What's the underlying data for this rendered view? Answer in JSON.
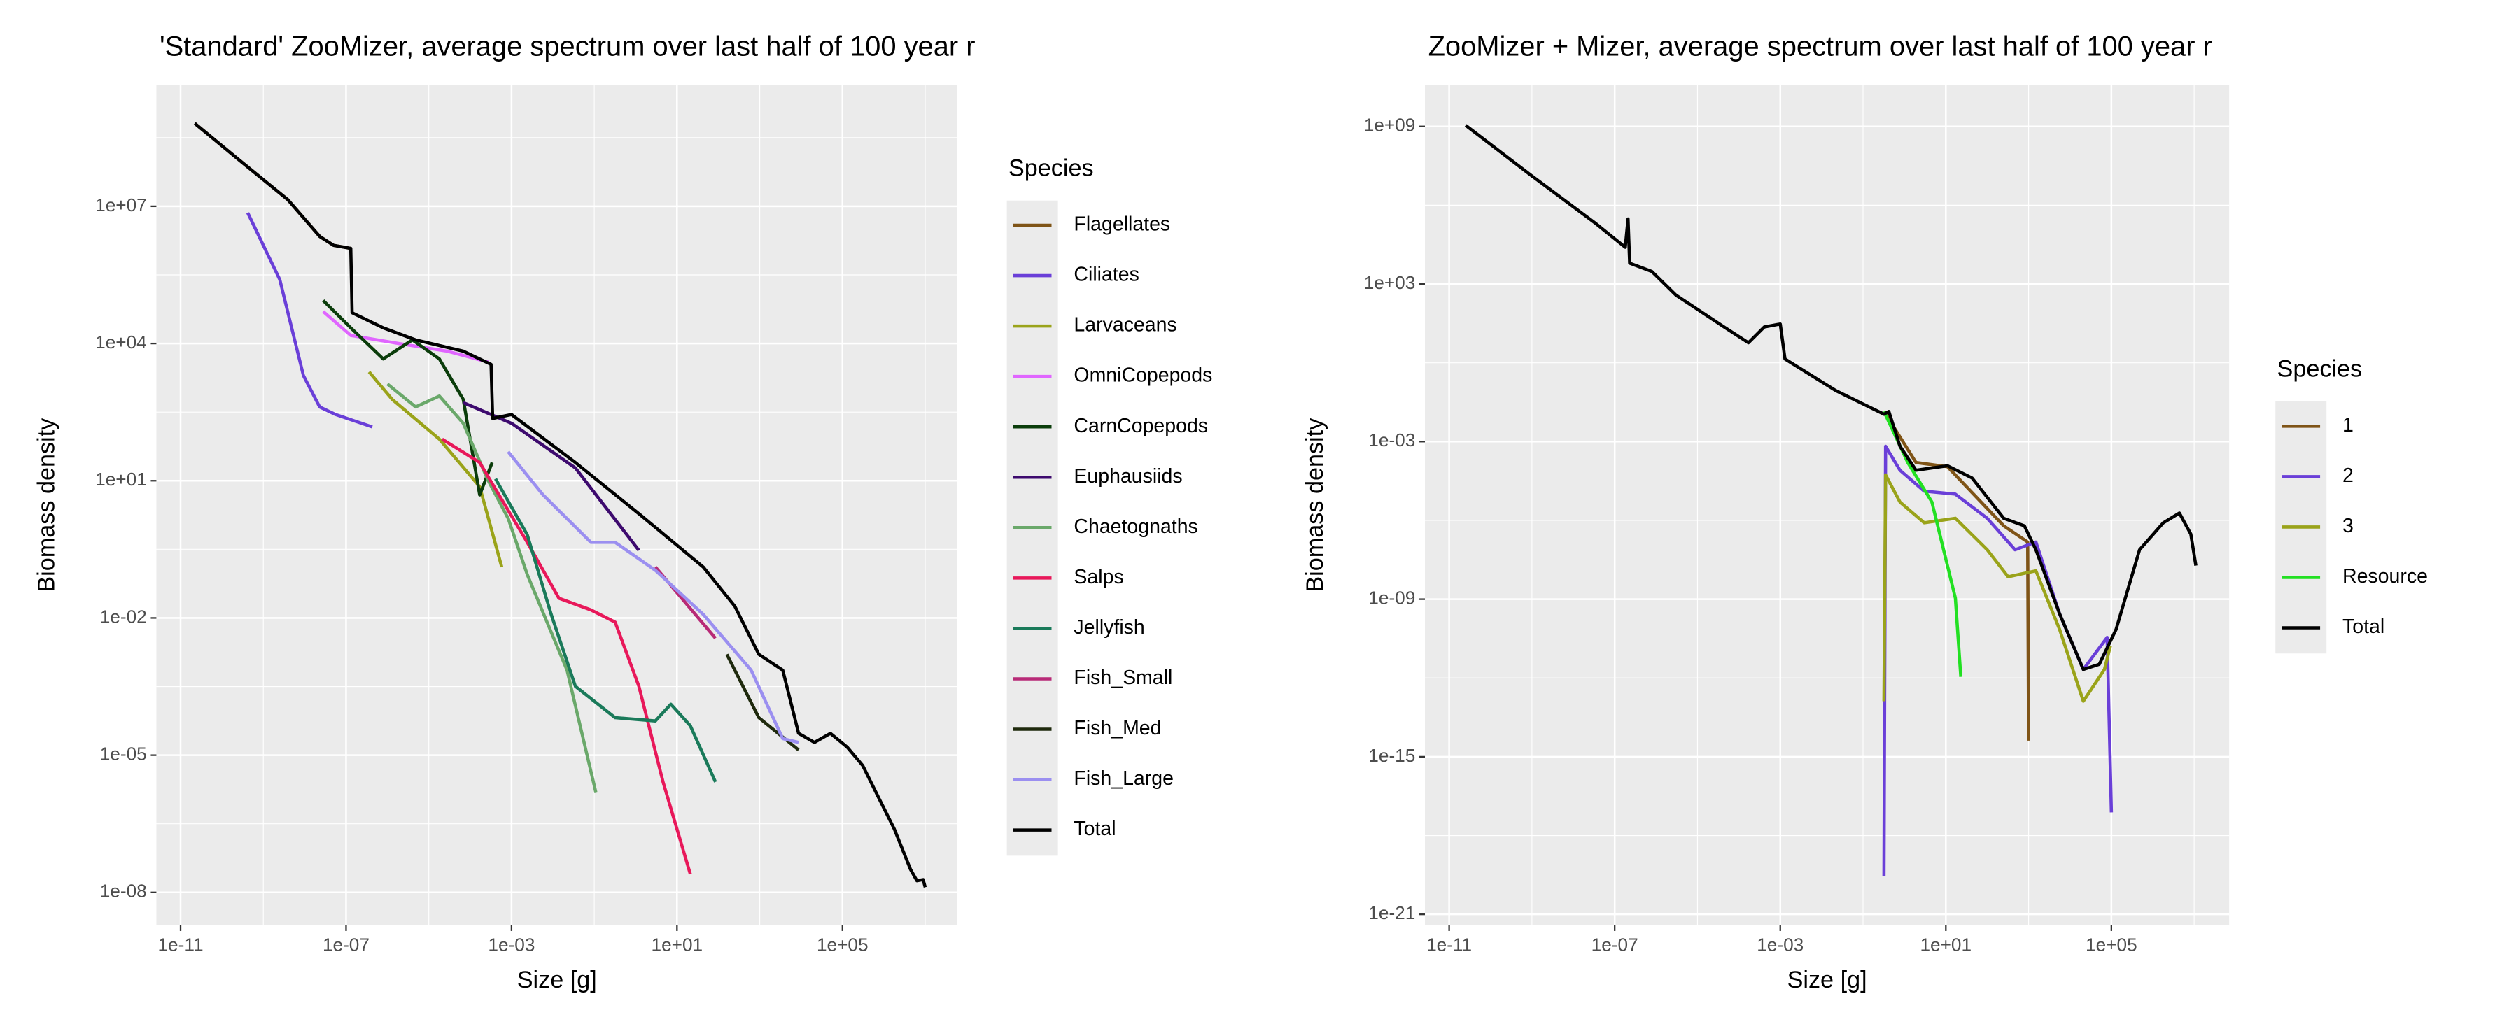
{
  "chart_data": [
    {
      "type": "line",
      "title": "'Standard' ZooMizer, average spectrum over last half of 100 year r",
      "x_label": "Size [g]",
      "y_label": "Biomass density",
      "legend_title": "Species",
      "legend": "right",
      "log_x": true,
      "log_y": true,
      "grid": true,
      "xlim": [
        2.6e-12,
        60000000.0
      ],
      "ylim": [
        1.9e-09,
        4500000000.0
      ],
      "xticks": [
        {
          "value": 1e-11,
          "label": "1e-11"
        },
        {
          "value": 1e-07,
          "label": "1e-07"
        },
        {
          "value": 0.001,
          "label": "1e-03"
        },
        {
          "value": 10,
          "label": "1e+01"
        },
        {
          "value": 100000.0,
          "label": "1e+05"
        }
      ],
      "yticks": [
        {
          "value": 1e-08,
          "label": "1e-08"
        },
        {
          "value": 1e-05,
          "label": "1e-05"
        },
        {
          "value": 0.01,
          "label": "1e-02"
        },
        {
          "value": 10,
          "label": "1e+01"
        },
        {
          "value": 10000.0,
          "label": "1e+04"
        },
        {
          "value": 10000000.0,
          "label": "1e+07"
        }
      ],
      "series": [
        {
          "name": "Flagellates",
          "color": "#7f5417",
          "x": [
            2.2e-11,
            2.7e-10,
            3.9e-09,
            2.3e-08,
            5e-08,
            1.3e-07
          ],
          "values": [
            650000000.0,
            100000000.0,
            14000000.0,
            2200000.0,
            1400000.0,
            1200000.0
          ]
        },
        {
          "name": "Ciliates",
          "color": "#6a3fd8",
          "x": [
            4.2e-10,
            2.5e-09,
            9.3e-09,
            2.3e-08,
            5.6e-08,
            4.3e-07
          ],
          "values": [
            7200000.0,
            250000.0,
            2000,
            410,
            280,
            150
          ]
        },
        {
          "name": "Larvaceans",
          "color": "#9aa31a",
          "x": [
            3.6e-07,
            1.3e-06,
            1.8e-05,
            0.00017,
            0.00058
          ],
          "values": [
            2400,
            600,
            81,
            7.4,
            0.13
          ]
        },
        {
          "name": "OmniCopepods",
          "color": "#e066ff",
          "x": [
            2.8e-08,
            1.3e-07,
            1.9e-06,
            2.8e-05,
            0.00028
          ],
          "values": [
            50000.0,
            15000.0,
            10000.0,
            6800,
            3900
          ]
        },
        {
          "name": "CarnCopepods",
          "color": "#0b3d0b",
          "x": [
            2.8e-08,
            1.3e-07,
            7.9e-07,
            4e-06,
            1.8e-05,
            6.8e-05,
            0.00017,
            0.00034
          ],
          "values": [
            87000.0,
            22000.0,
            4600,
            12000.0,
            4600,
            600,
            4.9,
            25
          ]
        },
        {
          "name": "Euphausiids",
          "color": "#3d0a6e",
          "x": [
            6.8e-05,
            0.001,
            0.035,
            1.2
          ],
          "values": [
            510,
            180,
            19,
            0.3
          ]
        },
        {
          "name": "Chaetognaths",
          "color": "#6aa86a",
          "x": [
            1e-06,
            4.8e-06,
            1.8e-05,
            6.8e-05,
            0.00026,
            0.00083,
            0.0024,
            0.022,
            0.11
          ],
          "values": [
            1300,
            410,
            710,
            180,
            11,
            1.5,
            0.089,
            0.00072,
            1.5e-06
          ]
        },
        {
          "name": "Salps",
          "color": "#e8185a",
          "x": [
            2.1e-05,
            0.00017,
            0.0024,
            0.014,
            0.083,
            0.32,
            1.2,
            4.6,
            21
          ],
          "values": [
            81,
            25,
            0.45,
            0.027,
            0.015,
            0.0081,
            0.00032,
            2.6e-06,
            2.5e-08
          ]
        },
        {
          "name": "Jellyfish",
          "color": "#1a7a5a",
          "x": [
            0.00041,
            0.0024,
            0.0091,
            0.035,
            0.32,
            3,
            7.1,
            21,
            85
          ],
          "values": [
            11,
            0.66,
            0.012,
            0.00032,
            6.6e-05,
            5.6e-05,
            0.00013,
            4.4e-05,
            2.6e-06
          ]
        },
        {
          "name": "Fish_Small",
          "color": "#b82a77",
          "x": [
            3,
            85
          ],
          "values": [
            0.13,
            0.0036
          ]
        },
        {
          "name": "Fish_Med",
          "color": "#1f2a0d",
          "x": [
            160,
            950,
            8700
          ],
          "values": [
            0.0016,
            6.6e-05,
            1.3e-05
          ]
        },
        {
          "name": "Fish_Large",
          "color": "#9b8ff0",
          "x": [
            0.00083,
            0.0058,
            0.083,
            0.32,
            3,
            43,
            620,
            3600,
            8700
          ],
          "values": [
            43,
            4.9,
            0.45,
            0.45,
            0.11,
            0.012,
            0.00072,
            2.3e-05,
            1.9e-05
          ]
        },
        {
          "name": "Total",
          "color": "#000000",
          "x": [
            2.2e-11,
            2.7e-10,
            3.9e-09,
            2.3e-08,
            5e-08,
            1.3e-07,
            1.4e-07,
            7.9e-07,
            4.8e-06,
            6.8e-05,
            0.00032,
            0.00035,
            0.001,
            0.035,
            1.2,
            43,
            250,
            950,
            3600,
            8700,
            21000.0,
            51000.0,
            130000.0,
            310000.0,
            740000.0,
            1800000.0,
            4400000.0,
            6300000.0,
            8900000.0,
            10000000.0
          ],
          "values": [
            650000000.0,
            100000000.0,
            14000000.0,
            2200000.0,
            1400000.0,
            1200000.0,
            47000.0,
            22000.0,
            12000.0,
            6800,
            3500,
            230,
            280,
            25,
            1.9,
            0.13,
            0.018,
            0.0016,
            0.00072,
            3e-05,
            1.9e-05,
            3e-05,
            1.5e-05,
            5.9e-06,
            1.2e-06,
            2.4e-07,
            3.2e-08,
            1.8e-08,
            1.9e-08,
            1.3e-08
          ]
        }
      ]
    },
    {
      "type": "line",
      "title": "ZooMizer + Mizer, average spectrum over last half of 100 year r",
      "x_label": "Size [g]",
      "y_label": "Biomass density",
      "legend_title": "Species",
      "legend": "right",
      "log_x": true,
      "log_y": true,
      "grid": true,
      "xlim": [
        2.6e-12,
        70000000.0
      ],
      "ylim": [
        3.8e-22,
        38000000000.0
      ],
      "xticks": [
        {
          "value": 1e-11,
          "label": "1e-11"
        },
        {
          "value": 1e-07,
          "label": "1e-07"
        },
        {
          "value": 0.001,
          "label": "1e-03"
        },
        {
          "value": 10,
          "label": "1e+01"
        },
        {
          "value": 100000.0,
          "label": "1e+05"
        }
      ],
      "yticks": [
        {
          "value": 1e-21,
          "label": "1e-21"
        },
        {
          "value": 1e-15,
          "label": "1e-15"
        },
        {
          "value": 1e-09,
          "label": "1e-09"
        },
        {
          "value": 0.001,
          "label": "1e-03"
        },
        {
          "value": 1000,
          "label": "1e+03"
        },
        {
          "value": 1000000000.0,
          "label": "1e+09"
        }
      ],
      "series": [
        {
          "name": "1",
          "color": "#7f5417",
          "x": [
            0.32,
            1.9,
            11,
            250,
            950,
            1000
          ],
          "values": [
            0.014,
            0.00016,
            0.00011,
            6.2e-07,
            1.5e-07,
            4.1e-15
          ]
        },
        {
          "name": "2",
          "color": "#6a3fd8",
          "x": [
            0.32,
            0.35,
            0.78,
            3,
            17,
            100,
            470,
            1500,
            5600,
            21000.0,
            79000.0,
            100000.0
          ],
          "values": [
            2.8e-20,
            0.00066,
            8.1e-05,
            1.3e-05,
            1e-05,
            1.2e-06,
            7.6e-08,
            1.5e-07,
            2.8e-10,
            2.1e-12,
            3.5e-11,
            7.6e-18
          ]
        },
        {
          "name": "3",
          "color": "#9aa31a",
          "x": [
            0.32,
            0.35,
            0.78,
            3,
            17,
            100,
            320,
            1500,
            5600,
            21000.0,
            68000.0,
            95000.0
          ],
          "values": [
            1.3e-13,
            5.4e-05,
            5e-06,
            8.1e-07,
            1.2e-06,
            7.6e-08,
            7.1e-09,
            1.2e-08,
            7.1e-11,
            1.3e-13,
            2.1e-12,
            1.7e-11
          ]
        },
        {
          "name": "Resource",
          "color": "#22e022",
          "x": [
            0.32,
            1.2,
            4.6,
            17,
            23
          ],
          "values": [
            0.014,
            0.00016,
            5e-06,
            1.1e-09,
            1.1e-12
          ]
        },
        {
          "name": "Total",
          "color": "#000000",
          "x": [
            2.5e-11,
            1e-09,
            3.5e-08,
            1.8e-07,
            2.1e-07,
            2.3e-07,
            7.9e-07,
            3e-06,
            4.4e-05,
            0.00017,
            0.00041,
            0.001,
            0.0013,
            0.022,
            0.32,
            0.42,
            0.78,
            1.9,
            11,
            43,
            250,
            790,
            1500,
            5600,
            21000.0,
            51000.0,
            130000.0,
            480000.0,
            1800000.0,
            4400000.0,
            8300000.0,
            11000000.0
          ],
          "values": [
            1100000000.0,
            13000000.0,
            200000.0,
            25000.0,
            300000.0,
            6200,
            3000,
            380,
            23,
            5.8,
            23,
            30,
            1.4,
            0.087,
            0.011,
            0.014,
            0.00066,
            8.1e-05,
            0.00012,
            4.1e-05,
            1.2e-06,
            6.2e-07,
            7.6e-08,
            2.8e-10,
            2.1e-12,
            3.3e-12,
            7.1e-11,
            7.6e-08,
            8.1e-07,
            1.9e-06,
            3e-07,
            1.9e-08
          ]
        }
      ]
    }
  ]
}
